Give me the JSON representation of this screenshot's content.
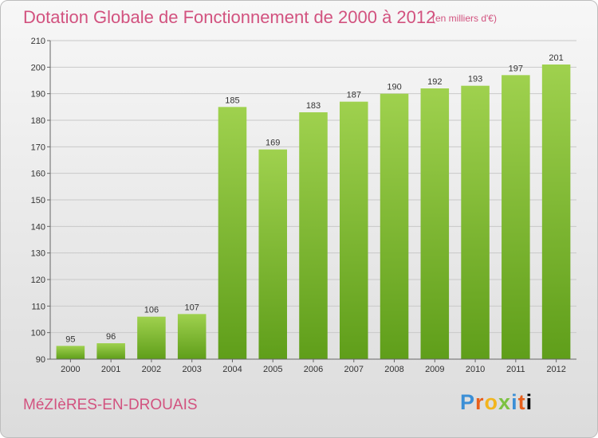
{
  "header": {
    "title": "Dotation Globale de Fonctionnement de 2000 à 2012",
    "unit": "(en milliers d'€)"
  },
  "footer": {
    "commune": "MéZIèRES-EN-DROUAIS",
    "logo": "Proxiti"
  },
  "colors": {
    "bar_top": "#9fd14e",
    "bar_bottom": "#5f9e1a",
    "title": "#d2527f"
  },
  "chart_data": {
    "type": "bar",
    "title": "Dotation Globale de Fonctionnement de 2000 à 2012",
    "subtitle": "(en milliers d'€)",
    "categories": [
      "2000",
      "2001",
      "2002",
      "2003",
      "2004",
      "2005",
      "2006",
      "2007",
      "2008",
      "2009",
      "2010",
      "2011",
      "2012"
    ],
    "values": [
      95,
      96,
      106,
      107,
      185,
      169,
      183,
      187,
      190,
      192,
      193,
      197,
      201
    ],
    "ylim": [
      90,
      210
    ],
    "yticks": [
      90,
      100,
      110,
      120,
      130,
      140,
      150,
      160,
      170,
      180,
      190,
      200,
      210
    ],
    "grid": true,
    "legend": "none"
  }
}
